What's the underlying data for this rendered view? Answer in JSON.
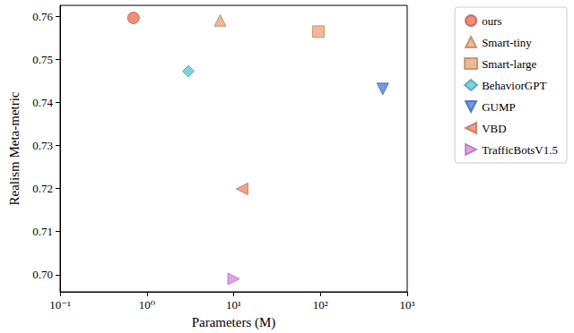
{
  "chart_data": {
    "type": "scatter",
    "x_label": "Parameters (M)",
    "y_label": "Realism Meta-metric",
    "log": "x",
    "grid": false,
    "legend": "upper right",
    "xlim": [
      0.1,
      1000
    ],
    "xticks": [
      {
        "value": 0.1,
        "label": "10⁻¹"
      },
      {
        "value": 1,
        "label": "10⁰"
      },
      {
        "value": 10,
        "label": "10¹"
      },
      {
        "value": 100,
        "label": "10²"
      },
      {
        "value": 1000,
        "label": "10³"
      }
    ],
    "ylim": [
      0.696,
      0.7625
    ],
    "yticks": [
      {
        "value": 0.7,
        "label": "0.70"
      },
      {
        "value": 0.71,
        "label": "0.71"
      },
      {
        "value": 0.72,
        "label": "0.72"
      },
      {
        "value": 0.73,
        "label": "0.73"
      },
      {
        "value": 0.74,
        "label": "0.74"
      },
      {
        "value": 0.75,
        "label": "0.75"
      },
      {
        "value": 0.76,
        "label": "0.76"
      }
    ],
    "series": [
      {
        "name": "ours",
        "color": "#e8735b",
        "marker": "circle",
        "x": [
          0.7
        ],
        "values": [
          0.7596
        ]
      },
      {
        "name": "Smart-tiny",
        "color": "#e9a87c",
        "marker": "triangle-up",
        "x": [
          7
        ],
        "values": [
          0.759
        ]
      },
      {
        "name": "Smart-large",
        "color": "#e9a87c",
        "marker": "square",
        "x": [
          95
        ],
        "values": [
          0.7564
        ]
      },
      {
        "name": "BehaviorGPT",
        "color": "#5dc8d3",
        "marker": "diamond",
        "x": [
          3
        ],
        "values": [
          0.7472
        ]
      },
      {
        "name": "GUMP",
        "color": "#4d7fe0",
        "marker": "triangle-down",
        "x": [
          523
        ],
        "values": [
          0.7431
        ]
      },
      {
        "name": "VBD",
        "color": "#ec8a6c",
        "marker": "triangle-left",
        "x": [
          12.5
        ],
        "values": [
          0.7199
        ]
      },
      {
        "name": "TrafficBotsV1.5",
        "color": "#d98be0",
        "marker": "triangle-right",
        "x": [
          10
        ],
        "values": [
          0.699
        ]
      }
    ]
  }
}
